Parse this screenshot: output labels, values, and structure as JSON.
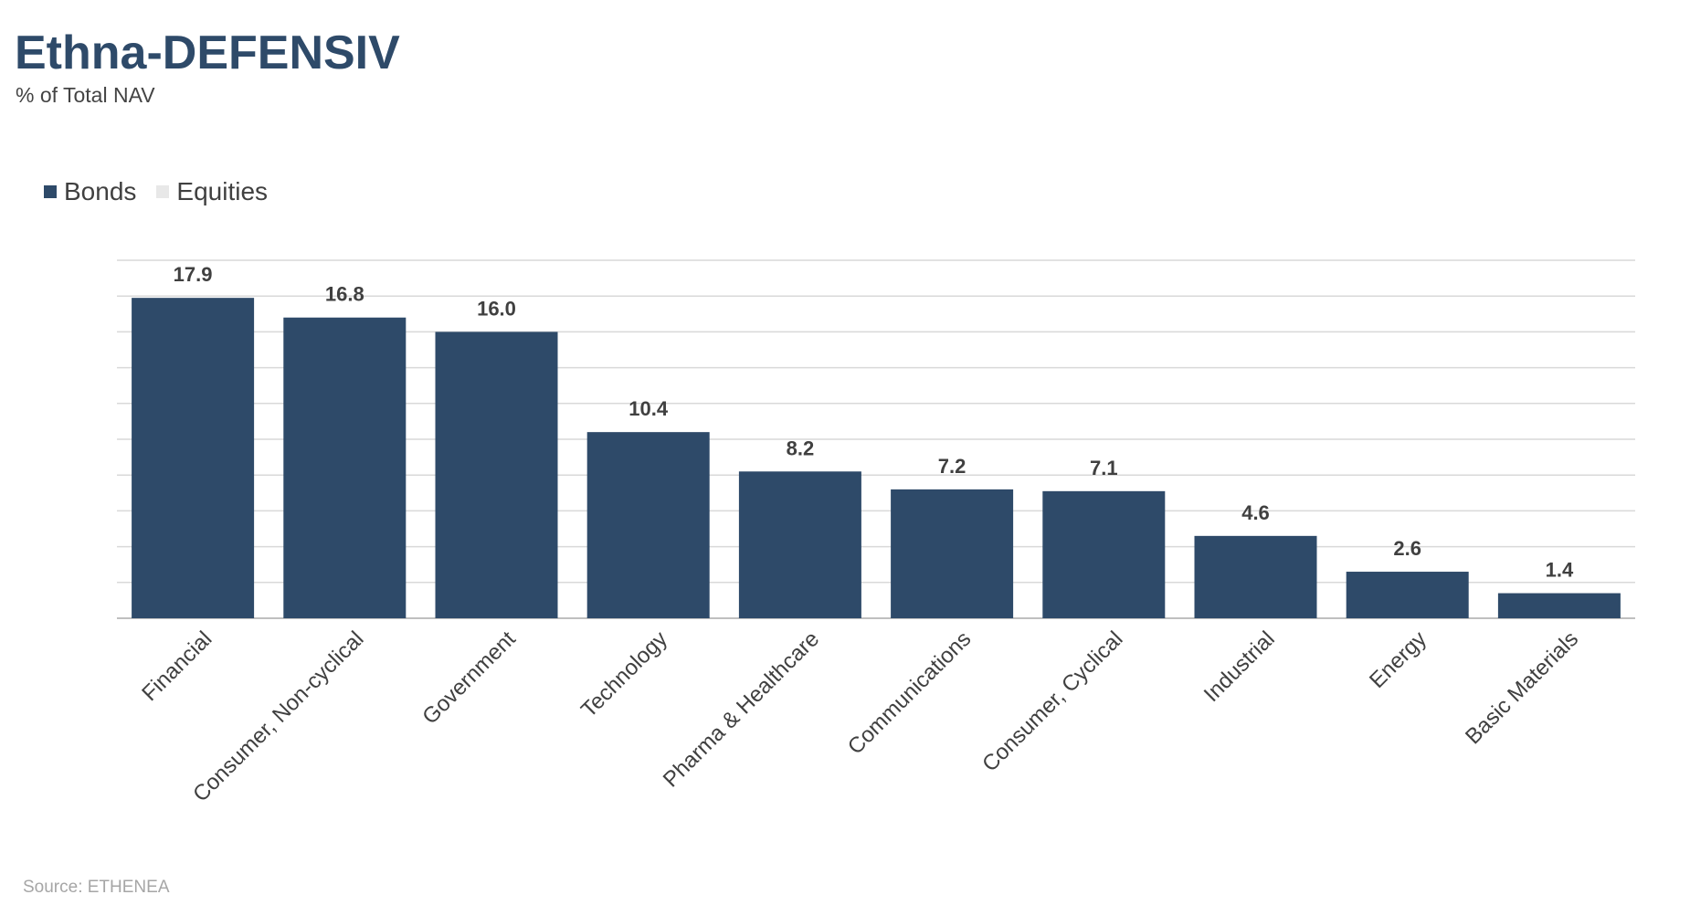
{
  "title": "Ethna-DEFENSIV",
  "subtitle": "% of Total NAV",
  "source": "Source: ETHENEA",
  "legend": [
    {
      "name": "Bonds",
      "color": "#2e4a69"
    },
    {
      "name": "Equities",
      "color": "#e8e8e8"
    }
  ],
  "chart_data": {
    "type": "bar",
    "categories": [
      "Financial",
      "Consumer, Non-cyclical",
      "Government",
      "Technology",
      "Pharma & Healthcare",
      "Communications",
      "Consumer, Cyclical",
      "Industrial",
      "Energy",
      "Basic Materials"
    ],
    "series": [
      {
        "name": "Bonds",
        "values": [
          17.9,
          16.8,
          16.0,
          10.4,
          8.2,
          7.2,
          7.1,
          4.6,
          2.6,
          1.4
        ],
        "color": "#2e4a69"
      },
      {
        "name": "Equities",
        "values": [
          0,
          0,
          0,
          0,
          0,
          0,
          0,
          0,
          0,
          0
        ],
        "color": "#e8e8e8"
      }
    ],
    "ylim": [
      0,
      20
    ],
    "grid": true,
    "legend_position": "top-left"
  }
}
